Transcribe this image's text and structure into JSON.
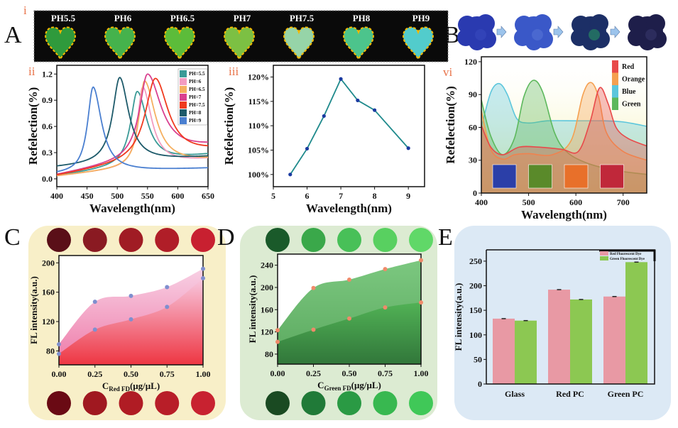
{
  "figure": {
    "panel_labels": {
      "A": "A",
      "B": "B",
      "C": "C",
      "D": "D",
      "E": "E"
    },
    "sub_labels": {
      "i": "i",
      "ii": "ii",
      "iii": "iii",
      "vi": "vi"
    }
  },
  "panel_a": {
    "samples": [
      {
        "label": "PH5.5",
        "color": "#2f9a3c"
      },
      {
        "label": "PH6",
        "color": "#45b24c"
      },
      {
        "label": "PH6.5",
        "color": "#5cbc3a"
      },
      {
        "label": "PH7",
        "color": "#7cc043"
      },
      {
        "label": "PH7.5",
        "color": "#96d4a8"
      },
      {
        "label": "PH8",
        "color": "#4cc48c"
      },
      {
        "label": "PH9",
        "color": "#52cccc"
      }
    ]
  },
  "panel_b": {
    "stages": [
      {
        "color": "#2a3ab0",
        "accent": "#3a4cc0"
      },
      {
        "color": "#3a58c8",
        "accent": "#5a78d8"
      },
      {
        "color": "#1c2f66",
        "accent": "#2aa860"
      },
      {
        "color": "#1e1e4a",
        "accent": "#3a3a70"
      }
    ]
  },
  "chart_data": [
    {
      "id": "ii",
      "type": "line",
      "title": "",
      "xlabel": "Wavelength(nm)",
      "ylabel": "Refelection(%)",
      "xlim": [
        400,
        650
      ],
      "ylim": [
        -0.09,
        1.3
      ],
      "xticks": [
        "400",
        "450",
        "500",
        "550",
        "600",
        "650"
      ],
      "yticks": [
        "0.0",
        "0.3",
        "0.6",
        "0.9",
        "1.2"
      ],
      "legend_position": "top-right",
      "series": [
        {
          "name": "PH=5.5",
          "color": "#3a9a96",
          "peak_nm": 533,
          "peak": 1.0,
          "start": 0.03,
          "end": 0.27,
          "width_left": 13,
          "width_right": 20
        },
        {
          "name": "PH=6",
          "color": "#f39cc0",
          "peak_nm": 542,
          "peak": 1.05,
          "start": 0.03,
          "end": 0.22,
          "width_left": 10,
          "width_right": 18
        },
        {
          "name": "PH=6.5",
          "color": "#f5b060",
          "peak_nm": 545,
          "peak": 1.12,
          "start": 0.03,
          "end": 0.21,
          "width_left": 11,
          "width_right": 22
        },
        {
          "name": "PH=7",
          "color": "#d9408f",
          "peak_nm": 550,
          "peak": 1.2,
          "start": 0.04,
          "end": 0.36,
          "width_left": 16,
          "width_right": 28
        },
        {
          "name": "PH=7.5",
          "color": "#f03a1e",
          "peak_nm": 563,
          "peak": 1.15,
          "start": 0.03,
          "end": 0.31,
          "width_left": 20,
          "width_right": 26
        },
        {
          "name": "PH=8",
          "color": "#1d5a6a",
          "peak_nm": 504,
          "peak": 1.16,
          "start": 0.13,
          "end": 0.25,
          "width_left": 14,
          "width_right": 18
        },
        {
          "name": "PH=9",
          "color": "#4a7fd0",
          "peak_nm": 460,
          "peak": 1.05,
          "start": 0.05,
          "end": 0.12,
          "width_left": 11,
          "width_right": 17
        }
      ]
    },
    {
      "id": "iii",
      "type": "line",
      "title": "",
      "xlabel": "Wavelength(nm)",
      "ylabel": "Refelection(%)",
      "xlim": [
        5,
        9.48
      ],
      "ylim": [
        97.5,
        122.4
      ],
      "xticks": [
        "5",
        "6",
        "7",
        "8",
        "9"
      ],
      "yticks": [
        "100%",
        "105%",
        "110%",
        "115%",
        "120%"
      ],
      "line_color": "#1f8a8c",
      "marker_color": "#1a3aa0",
      "x": [
        5.5,
        6,
        6.5,
        7,
        7.5,
        8,
        9
      ],
      "y": [
        100,
        105.3,
        112,
        119.6,
        115.2,
        113.2,
        105.4
      ]
    },
    {
      "id": "vi",
      "type": "area",
      "title": "",
      "xlabel": "Wavelength(nm)",
      "ylabel": "Refelection(%)",
      "xlim": [
        400,
        750
      ],
      "ylim": [
        0,
        124.5
      ],
      "xticks": [
        "400",
        "500",
        "600",
        "700"
      ],
      "yticks": [
        "0",
        "30",
        "60",
        "90",
        "120"
      ],
      "legend_position": "top-right",
      "swatch_colors": [
        "#2b3fa8",
        "#5a8a2a",
        "#e8702a",
        "#c0283a"
      ],
      "series": [
        {
          "name": "Blue",
          "color": "#5cc6dc",
          "points": [
            [
              400,
              60
            ],
            [
              420,
              92
            ],
            [
              438,
              100
            ],
            [
              455,
              90
            ],
            [
              475,
              68
            ],
            [
              500,
              64
            ],
            [
              540,
              66
            ],
            [
              600,
              66
            ],
            [
              660,
              66
            ],
            [
              700,
              65
            ],
            [
              750,
              61
            ]
          ]
        },
        {
          "name": "Green",
          "color": "#5cb85c",
          "points": [
            [
              400,
              85
            ],
            [
              420,
              52
            ],
            [
              445,
              35
            ],
            [
              470,
              50
            ],
            [
              490,
              88
            ],
            [
              510,
              103
            ],
            [
              530,
              92
            ],
            [
              555,
              55
            ],
            [
              580,
              38
            ],
            [
              620,
              28
            ],
            [
              680,
              21
            ],
            [
              750,
              17
            ]
          ]
        },
        {
          "name": "Orange",
          "color": "#f5a050",
          "points": [
            [
              400,
              75
            ],
            [
              420,
              40
            ],
            [
              445,
              31
            ],
            [
              470,
              35
            ],
            [
              500,
              36
            ],
            [
              550,
              35
            ],
            [
              590,
              48
            ],
            [
              615,
              90
            ],
            [
              632,
              101
            ],
            [
              648,
              88
            ],
            [
              665,
              55
            ],
            [
              700,
              38
            ],
            [
              750,
              30
            ]
          ]
        },
        {
          "name": "Red",
          "color": "#e84a4a",
          "points": [
            [
              400,
              62
            ],
            [
              420,
              42
            ],
            [
              445,
              35
            ],
            [
              480,
              42
            ],
            [
              520,
              42
            ],
            [
              570,
              40
            ],
            [
              605,
              38
            ],
            [
              630,
              65
            ],
            [
              650,
              96
            ],
            [
              668,
              82
            ],
            [
              685,
              60
            ],
            [
              710,
              50
            ],
            [
              750,
              43
            ]
          ]
        }
      ]
    },
    {
      "id": "C",
      "type": "area",
      "title": "",
      "xlabel_main": "C",
      "xlabel_sub": "Red FD",
      "xlabel_unit": "(μg/μL)",
      "ylabel": "FL intensity(a.u.)",
      "xlim": [
        0,
        1
      ],
      "ylim": [
        61,
        210
      ],
      "xticks": [
        "0.00",
        "0.25",
        "0.50",
        "0.75",
        "1.00"
      ],
      "yticks": [
        "80",
        "120",
        "160",
        "200"
      ],
      "marker_color": "#7f8fcf",
      "x": [
        0,
        0.25,
        0.5,
        0.75,
        1
      ],
      "series": [
        {
          "name": "upper",
          "color": "#f4a8cc",
          "values": [
            89,
            147,
            155,
            167,
            192
          ]
        },
        {
          "name": "lower",
          "color": "#e83a4a",
          "values": [
            76,
            109,
            123,
            140,
            179
          ]
        }
      ],
      "sample_colors_top": [
        "#5a0f18",
        "#8a1a22",
        "#a01c24",
        "#b01e28",
        "#c82030"
      ],
      "sample_colors_bottom": [
        "#6a0a14",
        "#a01820",
        "#b01c24",
        "#b81e28",
        "#c82230"
      ]
    },
    {
      "id": "D",
      "type": "area",
      "title": "",
      "xlabel_main": "C",
      "xlabel_sub": "Green FD",
      "xlabel_unit": "(μg/μL)",
      "ylabel": "FL intensity(a.u.)",
      "xlim": [
        0,
        1
      ],
      "ylim": [
        62,
        260
      ],
      "xticks": [
        "0.00",
        "0.25",
        "0.50",
        "0.75",
        "1.00"
      ],
      "yticks": [
        "80",
        "120",
        "160",
        "200",
        "240"
      ],
      "marker_color": "#f08a6a",
      "x": [
        0,
        0.25,
        0.5,
        0.75,
        1
      ],
      "series": [
        {
          "name": "upper",
          "color": "#6cc070",
          "values": [
            123,
            199,
            214,
            233,
            249
          ]
        },
        {
          "name": "lower",
          "color": "#2f8a3c",
          "values": [
            102,
            124,
            144,
            164,
            173
          ]
        }
      ],
      "sample_colors_top": [
        "#1a5a2a",
        "#3aa84a",
        "#48c058",
        "#58d060",
        "#60d868"
      ],
      "sample_colors_bottom": [
        "#1a4a22",
        "#207a38",
        "#2a9a44",
        "#38b850",
        "#40c858"
      ]
    },
    {
      "id": "E",
      "type": "bar",
      "title": "",
      "xlabel": "",
      "ylabel": "FL intensity(a.u.)",
      "ylim": [
        0,
        273
      ],
      "yticks": [
        "0",
        "50",
        "100",
        "150",
        "200",
        "250"
      ],
      "categories": [
        "Glass",
        "Red PC",
        "Green PC"
      ],
      "legend_position": "top-right",
      "series": [
        {
          "name": "Red Fluorescent Dye",
          "color": "#e899a4",
          "values": [
            133,
            192,
            178
          ],
          "errors": [
            1,
            1,
            1
          ]
        },
        {
          "name": "Green Fluorescent Dye",
          "color": "#8cc852",
          "values": [
            129,
            172,
            248
          ],
          "errors": [
            2,
            1,
            1
          ]
        }
      ]
    }
  ]
}
